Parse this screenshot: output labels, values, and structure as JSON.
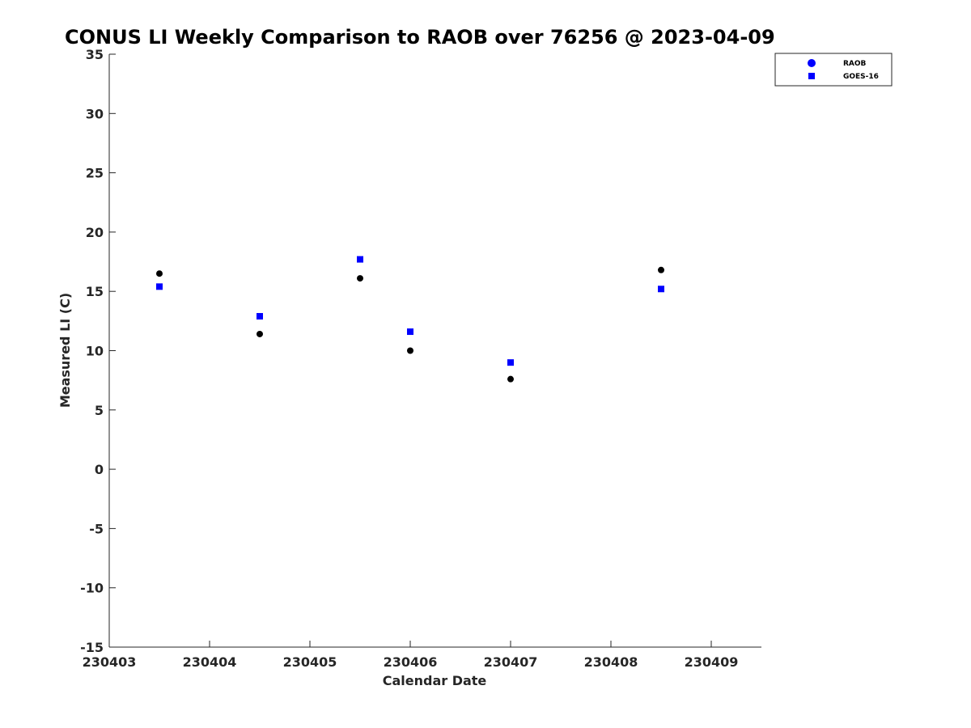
{
  "chart_data": {
    "type": "scatter",
    "title": "CONUS LI Weekly Comparison to RAOB over 76256 @ 2023-04-09",
    "xlabel": "Calendar Date",
    "ylabel": "Measured LI (C)",
    "x_ticks": [
      "230403",
      "230404",
      "230405",
      "230406",
      "230407",
      "230408",
      "230409"
    ],
    "xlim": [
      "230403",
      "230409 12:00"
    ],
    "y_ticks": [
      35,
      30,
      25,
      20,
      15,
      10,
      5,
      0,
      -5,
      -10,
      -15
    ],
    "ylim": [
      -15,
      35
    ],
    "grid": false,
    "legend_position": "top-right",
    "series": [
      {
        "name": "RAOB",
        "marker": "circle",
        "color": "#000000",
        "legend_color": "#0000ff",
        "points": [
          {
            "x": "230403 12:00",
            "y": 16.5
          },
          {
            "x": "230404 12:00",
            "y": 11.4
          },
          {
            "x": "230405 12:00",
            "y": 16.1
          },
          {
            "x": "230406 00:00",
            "y": 10.0
          },
          {
            "x": "230407 00:00",
            "y": 7.6
          },
          {
            "x": "230408 12:00",
            "y": 16.8
          }
        ]
      },
      {
        "name": "GOES-16",
        "marker": "square",
        "color": "#0000ff",
        "points": [
          {
            "x": "230403 12:00",
            "y": 15.4
          },
          {
            "x": "230404 12:00",
            "y": 12.9
          },
          {
            "x": "230405 12:00",
            "y": 17.7
          },
          {
            "x": "230406 00:00",
            "y": 11.6
          },
          {
            "x": "230407 00:00",
            "y": 9.0
          },
          {
            "x": "230408 12:00",
            "y": 15.2
          }
        ]
      }
    ]
  }
}
